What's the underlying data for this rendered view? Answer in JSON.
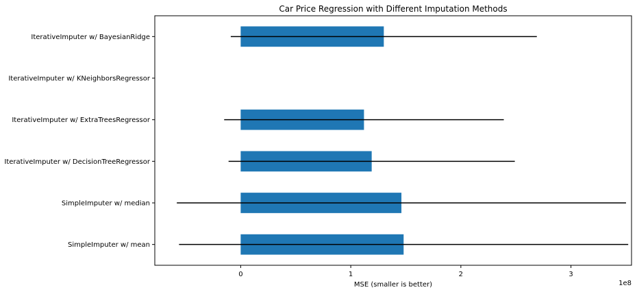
{
  "chart_data": {
    "type": "bar",
    "orientation": "horizontal",
    "title": "Car Price Regression with Different Imputation Methods",
    "xlabel": "MSE (smaller is better)",
    "ylabel": "",
    "x_scale_label": "1e8",
    "xlim": [
      -0.78,
      3.55
    ],
    "xticks": [
      0,
      1,
      2,
      3
    ],
    "categories": [
      "IterativeImputer w/ BayesianRidge",
      "IterativeImputer w/ KNeighborsRegressor",
      "IterativeImputer w/ ExtraTreesRegressor",
      "IterativeImputer w/ DecisionTreeRegressor",
      "SimpleImputer w/ median",
      "SimpleImputer w/ mean"
    ],
    "values": [
      1.3,
      null,
      1.12,
      1.19,
      1.46,
      1.48
    ],
    "error_bars": [
      1.39,
      null,
      1.27,
      1.3,
      2.04,
      2.04
    ],
    "bar_color": "#1f77b4",
    "error_color": "#000000",
    "grid": false,
    "legend": "none"
  }
}
